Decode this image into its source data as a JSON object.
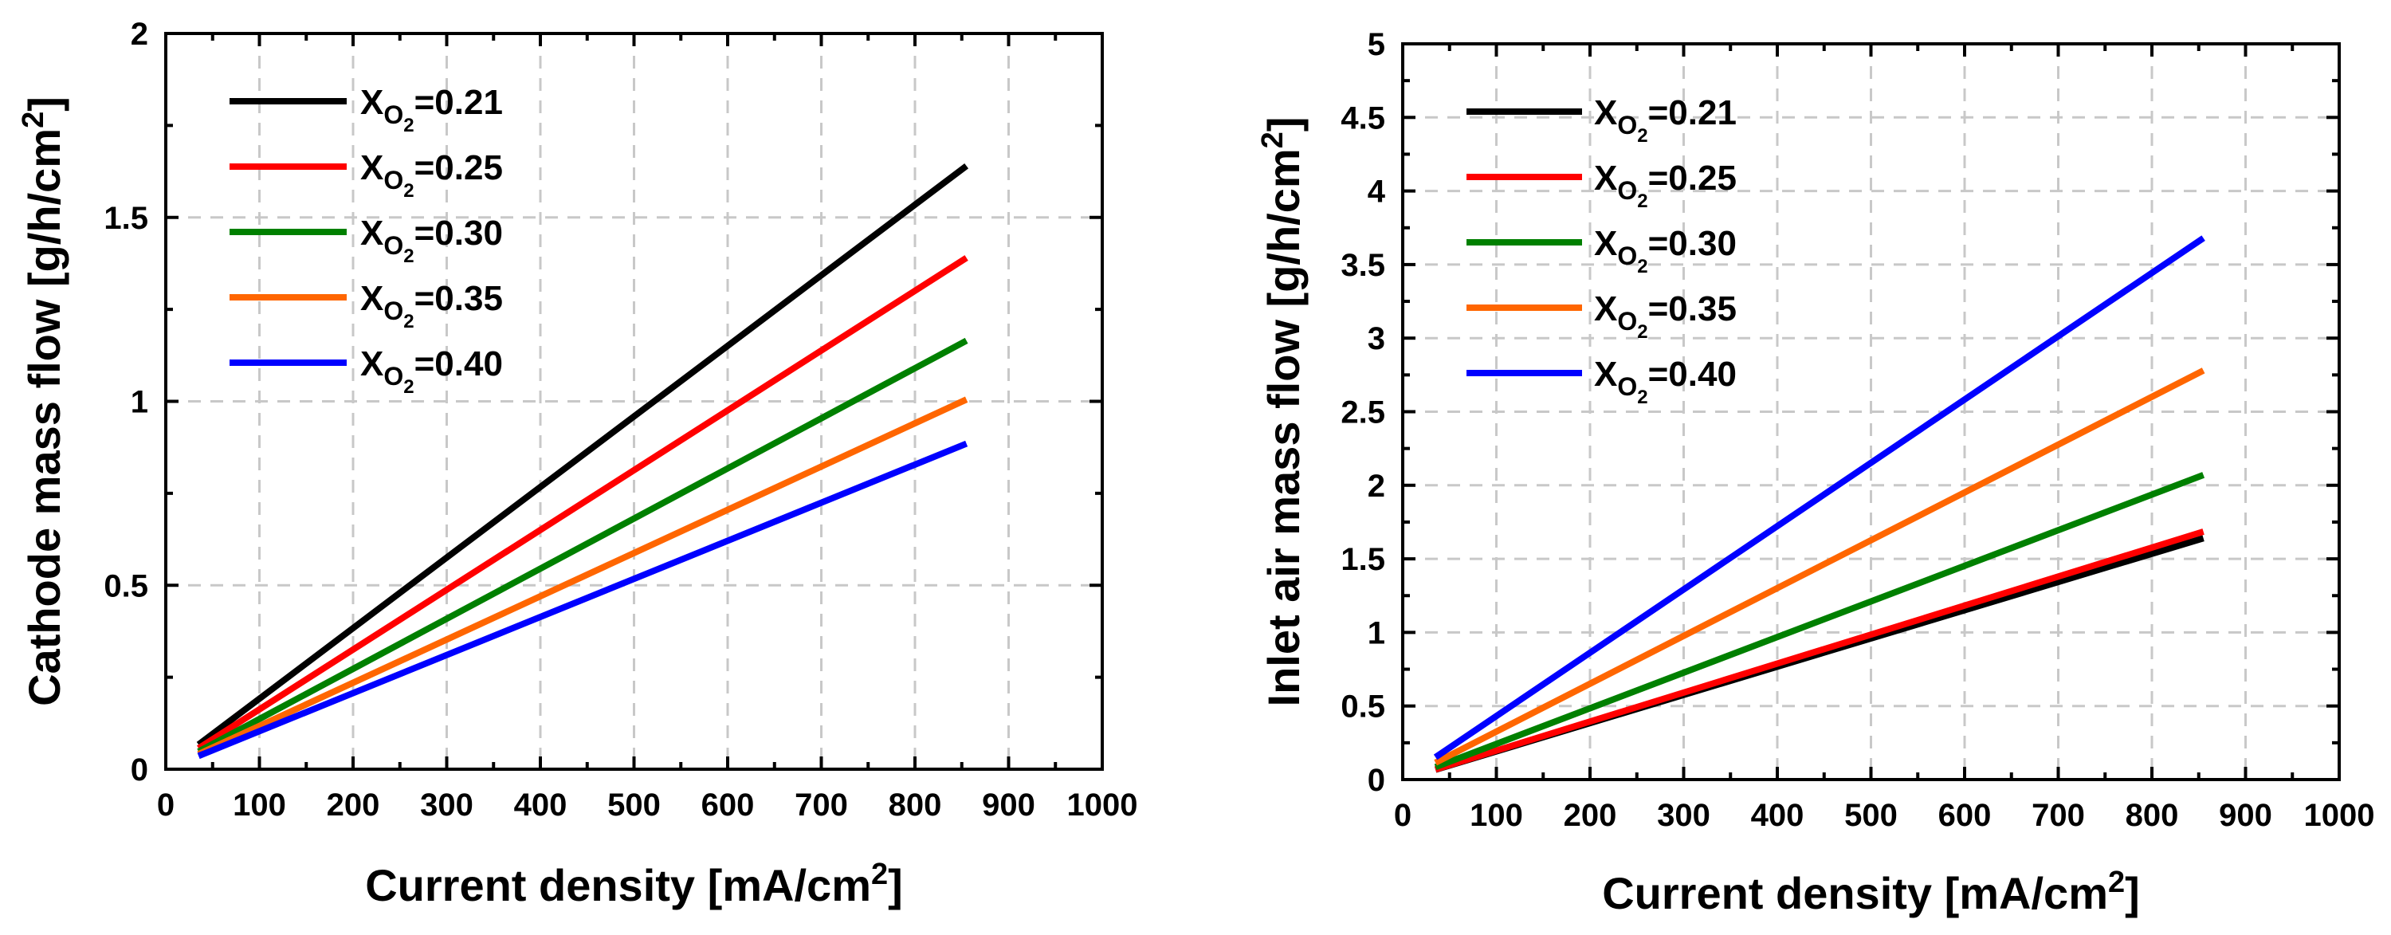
{
  "chart_data": [
    {
      "type": "line",
      "title": "",
      "xlabel": "Current density [mA/cm",
      "xlabel_sup": "2",
      "xlabel_end": "]",
      "ylabel": "Cathode mass flow [g/h/cm",
      "ylabel_sup": "2",
      "ylabel_end": "]",
      "xlim": [
        0,
        1000
      ],
      "ylim": [
        0,
        2
      ],
      "xticks": [
        0,
        100,
        200,
        300,
        400,
        500,
        600,
        700,
        800,
        900,
        1000
      ],
      "xtick_labels": [
        "0",
        "100",
        "200",
        "300",
        "400",
        "500",
        "600",
        "700",
        "800",
        "900",
        "1000"
      ],
      "yticks": [
        0,
        0.5,
        1,
        1.5,
        2
      ],
      "ytick_labels": [
        "0",
        "0.5",
        "1",
        "1.5",
        "2"
      ],
      "grid": true,
      "legend_position": "top-left",
      "series": [
        {
          "name": "X",
          "sub": "O",
          "subsub": "2",
          "value_text": "=0.21",
          "color": "#000000",
          "x": [
            35,
            855
          ],
          "y": [
            0.067,
            1.64
          ]
        },
        {
          "name": "X",
          "sub": "O",
          "subsub": "2",
          "value_text": "=0.25",
          "color": "#ff0000",
          "x": [
            35,
            855
          ],
          "y": [
            0.057,
            1.39
          ]
        },
        {
          "name": "X",
          "sub": "O",
          "subsub": "2",
          "value_text": "=0.30",
          "color": "#008000",
          "x": [
            35,
            855
          ],
          "y": [
            0.048,
            1.165
          ]
        },
        {
          "name": "X",
          "sub": "O",
          "subsub": "2",
          "value_text": "=0.35",
          "color": "#ff6600",
          "x": [
            35,
            855
          ],
          "y": [
            0.041,
            1.005
          ]
        },
        {
          "name": "X",
          "sub": "O",
          "subsub": "2",
          "value_text": "=0.40",
          "color": "#0000ff",
          "x": [
            35,
            855
          ],
          "y": [
            0.036,
            0.885
          ]
        }
      ]
    },
    {
      "type": "line",
      "title": "",
      "xlabel": "Current density [mA/cm",
      "xlabel_sup": "2",
      "xlabel_end": "]",
      "ylabel": "Inlet air mass flow [g/h/cm",
      "ylabel_sup": "2",
      "ylabel_end": "]",
      "xlim": [
        0,
        1000
      ],
      "ylim": [
        0,
        5
      ],
      "xticks": [
        0,
        100,
        200,
        300,
        400,
        500,
        600,
        700,
        800,
        900,
        1000
      ],
      "xtick_labels": [
        "0",
        "100",
        "200",
        "300",
        "400",
        "500",
        "600",
        "700",
        "800",
        "900",
        "1000"
      ],
      "yticks": [
        0,
        0.5,
        1,
        1.5,
        2,
        2.5,
        3,
        3.5,
        4,
        4.5,
        5
      ],
      "ytick_labels": [
        "0",
        "0.5",
        "1",
        "1.5",
        "2",
        "2.5",
        "3",
        "3.5",
        "4",
        "4.5",
        "5"
      ],
      "grid": true,
      "legend_position": "top-left",
      "series": [
        {
          "name": "X",
          "sub": "O",
          "subsub": "2",
          "value_text": "=0.21",
          "color": "#000000",
          "x": [
            35,
            855
          ],
          "y": [
            0.067,
            1.64
          ]
        },
        {
          "name": "X",
          "sub": "O",
          "subsub": "2",
          "value_text": "=0.25",
          "color": "#ff0000",
          "x": [
            35,
            855
          ],
          "y": [
            0.069,
            1.685
          ]
        },
        {
          "name": "X",
          "sub": "O",
          "subsub": "2",
          "value_text": "=0.30",
          "color": "#008000",
          "x": [
            35,
            855
          ],
          "y": [
            0.085,
            2.07
          ]
        },
        {
          "name": "X",
          "sub": "O",
          "subsub": "2",
          "value_text": "=0.35",
          "color": "#ff6600",
          "x": [
            35,
            855
          ],
          "y": [
            0.115,
            2.78
          ]
        },
        {
          "name": "X",
          "sub": "O",
          "subsub": "2",
          "value_text": "=0.40",
          "color": "#0000ff",
          "x": [
            35,
            855
          ],
          "y": [
            0.152,
            3.68
          ]
        }
      ]
    }
  ]
}
